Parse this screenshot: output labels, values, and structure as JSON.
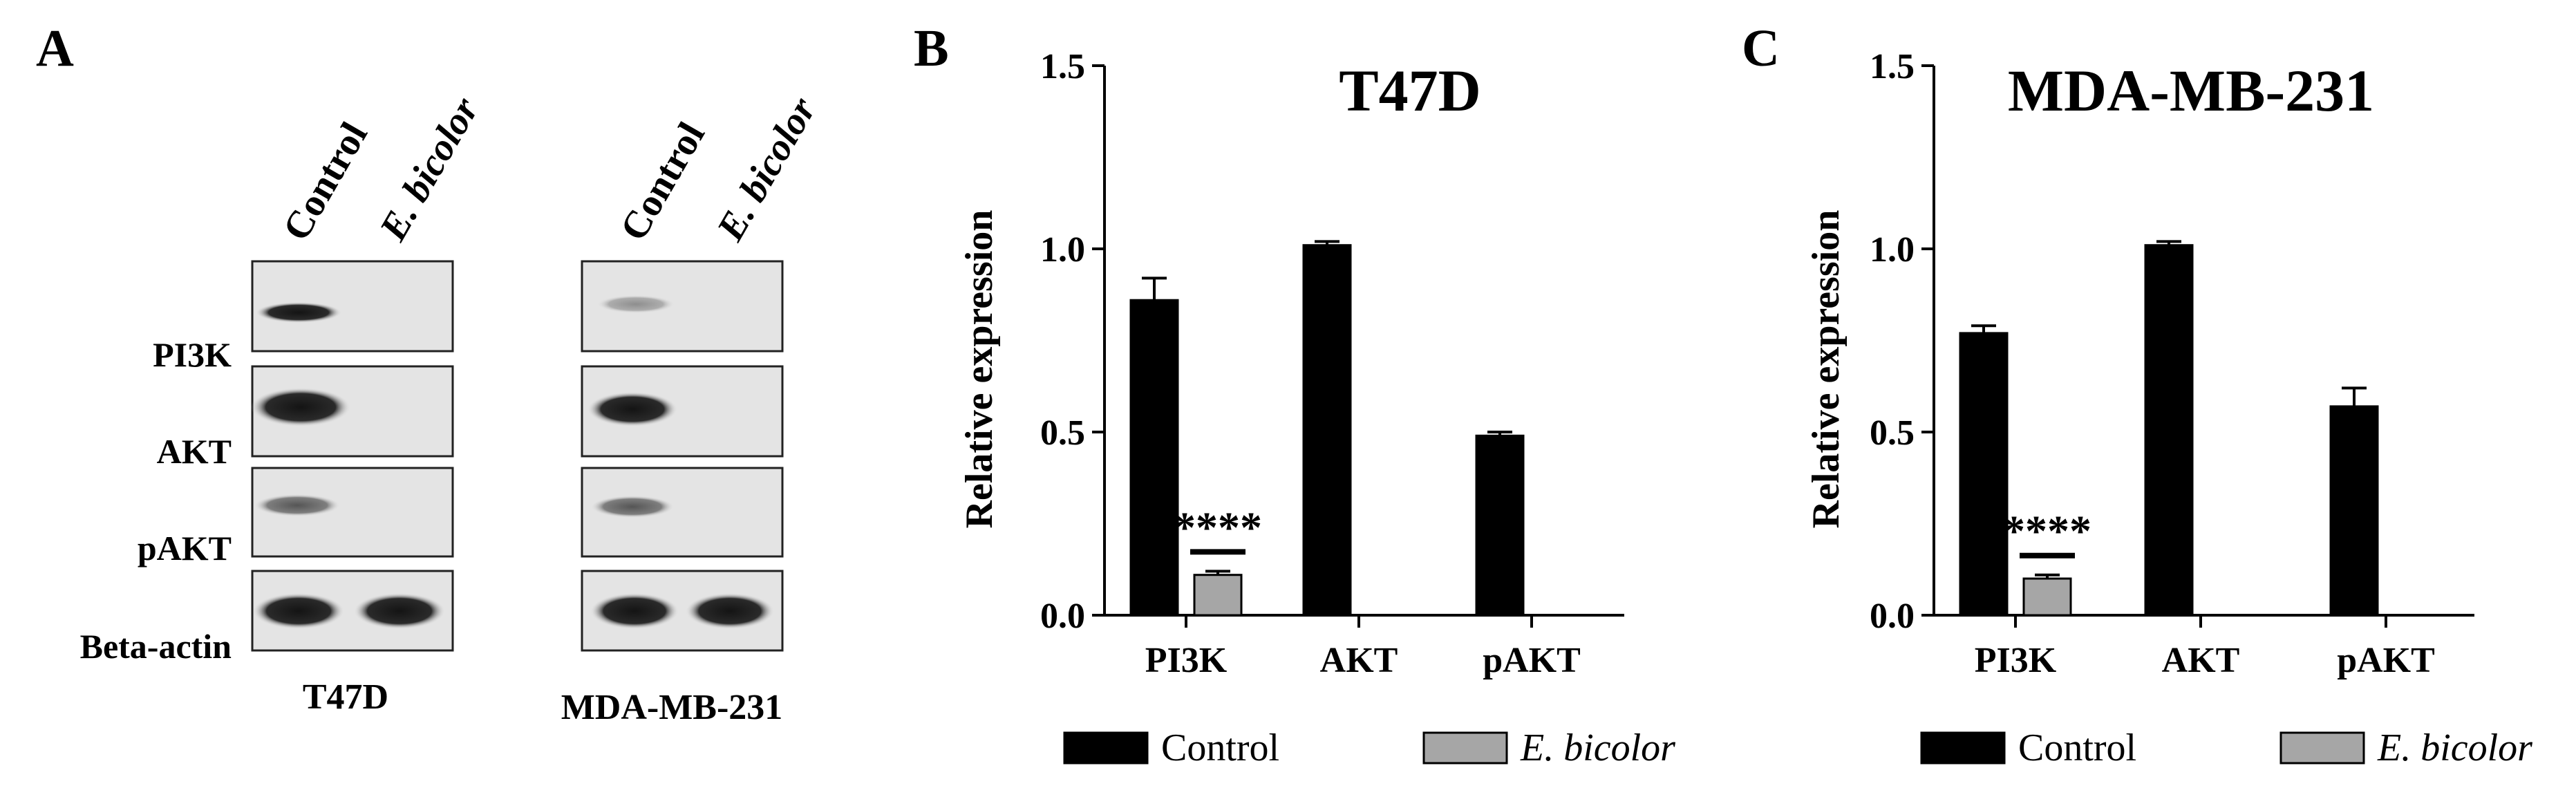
{
  "panel_a": {
    "letter": "A",
    "lane_labels": [
      "Control",
      "E. bicolor"
    ],
    "row_labels": [
      "PI3K",
      "AKT",
      "pAKT",
      "Beta-actin"
    ],
    "blots": [
      {
        "cell_line": "T47D"
      },
      {
        "cell_line": "MDA-MB-231"
      }
    ]
  },
  "chart_data": [
    {
      "panel": "B",
      "type": "bar",
      "title": "T47D",
      "xlabel": "",
      "ylabel": "Relative expression",
      "ylim": [
        0,
        1.5
      ],
      "yticks": [
        "0.0",
        "0.5",
        "1.0",
        "1.5"
      ],
      "categories": [
        "PI3K",
        "AKT",
        "pAKT"
      ],
      "series": [
        {
          "name": "Control",
          "values": [
            0.86,
            1.01,
            0.49
          ],
          "errors": [
            0.06,
            0.01,
            0.01
          ]
        },
        {
          "name": "E. bicolor",
          "values": [
            0.11,
            null,
            null
          ],
          "errors": [
            0.01,
            null,
            null
          ]
        }
      ],
      "annotations": [
        {
          "category": "PI3K",
          "text": "****"
        }
      ],
      "legend": "bottom",
      "grid": false
    },
    {
      "panel": "C",
      "type": "bar",
      "title": "MDA-MB-231",
      "xlabel": "",
      "ylabel": "Relative expression",
      "ylim": [
        0,
        1.5
      ],
      "yticks": [
        "0.0",
        "0.5",
        "1.0",
        "1.5"
      ],
      "categories": [
        "PI3K",
        "AKT",
        "pAKT"
      ],
      "series": [
        {
          "name": "Control",
          "values": [
            0.77,
            1.01,
            0.57
          ],
          "errors": [
            0.02,
            0.01,
            0.05
          ]
        },
        {
          "name": "E. bicolor",
          "values": [
            0.1,
            null,
            null
          ],
          "errors": [
            0.01,
            null,
            null
          ]
        }
      ],
      "annotations": [
        {
          "category": "PI3K",
          "text": "****"
        }
      ],
      "legend": "bottom",
      "grid": false
    }
  ],
  "colors": {
    "control": "#000000",
    "treated": "#a6a6a6",
    "axis": "#000000"
  }
}
